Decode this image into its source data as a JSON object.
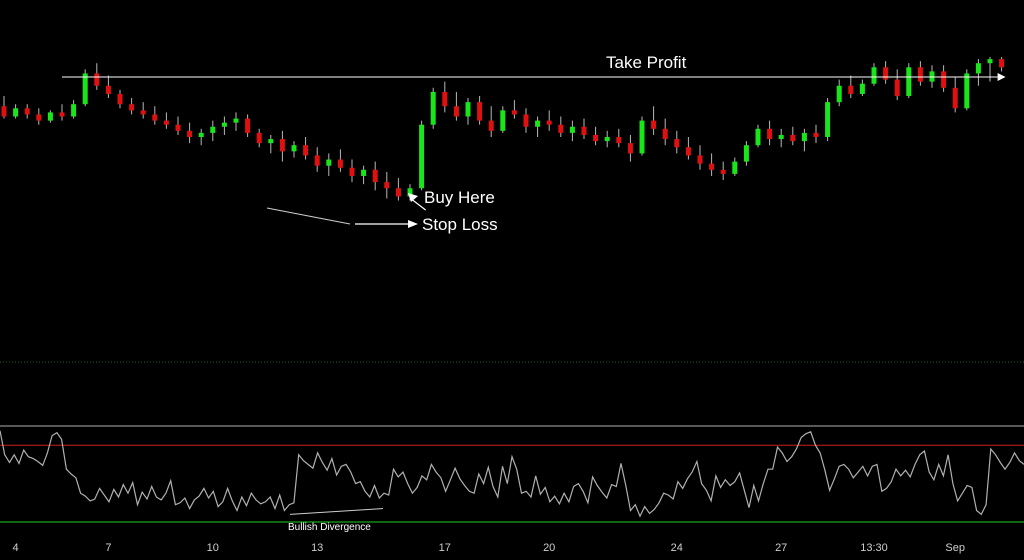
{
  "colors": {
    "background": "#000000",
    "up": "#19e619",
    "down": "#e01010",
    "wick": "#b8b8b8",
    "oscillator": "#b0b0b0",
    "overbought": "#cc1f1f",
    "oversold": "#1fcc1f",
    "annotation": "#ffffff",
    "separator": "#1b5e20"
  },
  "chart_data": [
    {
      "type": "candlestick",
      "title": "",
      "x_tick_labels": [
        "4",
        "7",
        "10",
        "13",
        "17",
        "20",
        "24",
        "27",
        "13:30",
        "Sep"
      ],
      "x_tick_index": [
        1,
        9,
        18,
        27,
        38,
        47,
        58,
        67,
        75,
        82
      ],
      "ylim": [
        0,
        100
      ],
      "grid": false,
      "ohlc": [
        [
          75,
          80,
          69,
          70
        ],
        [
          70,
          76,
          69,
          74
        ],
        [
          74,
          76,
          69,
          71
        ],
        [
          71,
          74,
          66,
          68
        ],
        [
          68,
          73,
          67,
          72
        ],
        [
          72,
          76,
          68,
          70
        ],
        [
          70,
          78,
          69,
          76
        ],
        [
          76,
          93,
          75,
          91
        ],
        [
          91,
          96,
          83,
          85
        ],
        [
          85,
          90,
          79,
          81
        ],
        [
          81,
          83,
          74,
          76
        ],
        [
          76,
          79,
          71,
          73
        ],
        [
          73,
          77,
          69,
          71
        ],
        [
          71,
          75,
          66,
          68
        ],
        [
          68,
          72,
          64,
          66
        ],
        [
          66,
          70,
          61,
          63
        ],
        [
          63,
          67,
          57,
          60
        ],
        [
          60,
          64,
          56,
          62
        ],
        [
          62,
          68,
          58,
          65
        ],
        [
          65,
          70,
          61,
          67
        ],
        [
          67,
          72,
          63,
          69
        ],
        [
          69,
          71,
          60,
          62
        ],
        [
          62,
          64,
          55,
          57
        ],
        [
          57,
          61,
          52,
          59
        ],
        [
          59,
          63,
          48,
          53
        ],
        [
          53,
          58,
          50,
          56
        ],
        [
          56,
          60,
          49,
          51
        ],
        [
          51,
          55,
          43,
          46
        ],
        [
          46,
          52,
          41,
          49
        ],
        [
          49,
          54,
          43,
          45
        ],
        [
          45,
          49,
          38,
          41
        ],
        [
          41,
          46,
          37,
          44
        ],
        [
          44,
          48,
          34,
          38
        ],
        [
          38,
          43,
          30,
          35
        ],
        [
          35,
          40,
          29,
          31
        ],
        [
          31,
          37,
          29,
          35
        ],
        [
          35,
          68,
          34,
          66
        ],
        [
          66,
          84,
          64,
          82
        ],
        [
          82,
          87,
          72,
          75
        ],
        [
          75,
          82,
          68,
          70
        ],
        [
          70,
          79,
          66,
          77
        ],
        [
          77,
          80,
          66,
          68
        ],
        [
          68,
          75,
          60,
          63
        ],
        [
          63,
          75,
          62,
          73
        ],
        [
          73,
          78,
          69,
          71
        ],
        [
          71,
          74,
          62,
          65
        ],
        [
          65,
          70,
          60,
          68
        ],
        [
          68,
          73,
          63,
          66
        ],
        [
          66,
          70,
          60,
          62
        ],
        [
          62,
          68,
          58,
          65
        ],
        [
          65,
          69,
          59,
          61
        ],
        [
          61,
          65,
          56,
          58
        ],
        [
          58,
          63,
          55,
          60
        ],
        [
          60,
          64,
          55,
          57
        ],
        [
          57,
          61,
          48,
          52
        ],
        [
          52,
          70,
          51,
          68
        ],
        [
          68,
          75,
          61,
          64
        ],
        [
          64,
          69,
          56,
          59
        ],
        [
          59,
          63,
          52,
          55
        ],
        [
          55,
          60,
          49,
          51
        ],
        [
          51,
          56,
          44,
          47
        ],
        [
          47,
          52,
          41,
          44
        ],
        [
          44,
          48,
          39,
          42
        ],
        [
          42,
          50,
          41,
          48
        ],
        [
          48,
          58,
          46,
          56
        ],
        [
          56,
          66,
          55,
          64
        ],
        [
          64,
          68,
          56,
          59
        ],
        [
          59,
          64,
          55,
          61
        ],
        [
          61,
          65,
          56,
          58
        ],
        [
          58,
          64,
          53,
          62
        ],
        [
          62,
          66,
          57,
          60
        ],
        [
          60,
          79,
          58,
          77
        ],
        [
          77,
          88,
          75,
          85
        ],
        [
          85,
          90,
          79,
          81
        ],
        [
          81,
          88,
          80,
          86
        ],
        [
          86,
          96,
          85,
          94
        ],
        [
          94,
          97,
          86,
          88
        ],
        [
          88,
          93,
          78,
          80
        ],
        [
          80,
          96,
          79,
          94
        ],
        [
          94,
          97,
          85,
          87
        ],
        [
          87,
          95,
          84,
          92
        ],
        [
          92,
          95,
          82,
          84
        ],
        [
          84,
          89,
          72,
          74
        ],
        [
          74,
          93,
          73,
          91
        ],
        [
          91,
          98,
          85,
          96
        ],
        [
          96,
          99,
          87,
          98
        ],
        [
          98,
          99,
          92,
          94
        ]
      ],
      "annotations": {
        "take_profit": "Take Profit",
        "buy_here": "Buy Here",
        "stop_loss": "Stop Loss"
      }
    },
    {
      "type": "line",
      "title": "",
      "ylim": [
        0,
        100
      ],
      "reference_lines": [
        {
          "value": 100,
          "label": ""
        },
        {
          "value": 80,
          "label": ""
        },
        {
          "value": 0,
          "label": ""
        }
      ],
      "values": [
        95,
        70,
        62,
        70,
        61,
        75,
        68,
        66,
        63,
        59,
        72,
        90,
        93,
        86,
        55,
        50,
        46,
        30,
        27,
        22,
        24,
        35,
        28,
        21,
        34,
        26,
        39,
        30,
        41,
        18,
        31,
        24,
        37,
        26,
        23,
        30,
        43,
        18,
        20,
        25,
        14,
        23,
        27,
        35,
        25,
        32,
        16,
        21,
        35,
        22,
        12,
        26,
        17,
        30,
        23,
        19,
        21,
        26,
        14,
        28,
        12,
        18,
        20,
        70,
        64,
        60,
        56,
        72,
        62,
        54,
        66,
        49,
        58,
        60,
        52,
        40,
        42,
        32,
        26,
        38,
        25,
        30,
        28,
        55,
        47,
        52,
        40,
        30,
        36,
        48,
        44,
        60,
        52,
        46,
        32,
        44,
        56,
        45,
        38,
        32,
        30,
        50,
        40,
        57,
        37,
        26,
        58,
        40,
        68,
        55,
        30,
        32,
        26,
        48,
        29,
        36,
        21,
        27,
        19,
        30,
        21,
        37,
        40,
        32,
        20,
        47,
        38,
        31,
        25,
        39,
        37,
        61,
        38,
        12,
        18,
        6,
        16,
        9,
        13,
        20,
        30,
        28,
        24,
        42,
        35,
        45,
        52,
        63,
        40,
        33,
        22,
        48,
        36,
        44,
        38,
        42,
        51,
        33,
        15,
        38,
        22,
        40,
        55,
        55,
        78,
        72,
        63,
        68,
        76,
        88,
        92,
        94,
        80,
        72,
        54,
        33,
        45,
        58,
        60,
        55,
        46,
        52,
        58,
        48,
        58,
        60,
        32,
        35,
        42,
        55,
        48,
        54,
        47,
        60,
        70,
        74,
        52,
        44,
        60,
        48,
        70,
        40,
        22,
        30,
        38,
        36,
        12,
        8,
        18,
        76,
        70,
        62,
        55,
        62,
        72,
        64,
        60
      ],
      "annotations": {
        "divergence": "Bullish Divergence"
      }
    }
  ]
}
